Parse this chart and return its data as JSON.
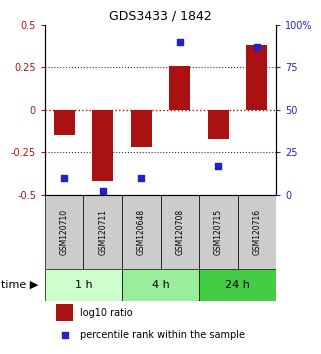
{
  "title": "GDS3433 / 1842",
  "samples": [
    "GSM120710",
    "GSM120711",
    "GSM120648",
    "GSM120708",
    "GSM120715",
    "GSM120716"
  ],
  "log10_ratio": [
    -0.15,
    -0.42,
    -0.22,
    0.26,
    -0.17,
    0.38
  ],
  "percentile_rank": [
    10,
    2,
    10,
    90,
    17,
    87
  ],
  "bar_color": "#aa1111",
  "dot_color": "#2222cc",
  "ylim_left": [
    -0.5,
    0.5
  ],
  "ylim_right": [
    0,
    100
  ],
  "yticks_left": [
    -0.5,
    -0.25,
    0,
    0.25,
    0.5
  ],
  "ytick_labels_left": [
    "-0.5",
    "-0.25",
    "0",
    "0.25",
    "0.5"
  ],
  "yticks_right": [
    0,
    25,
    50,
    75,
    100
  ],
  "ytick_labels_right": [
    "0",
    "25",
    "50",
    "75",
    "100%"
  ],
  "hline_zero_color": "#cc0000",
  "hline_color": "#333333",
  "groups": [
    {
      "label": "1 h",
      "samples": [
        0,
        1
      ],
      "color": "#ccffcc"
    },
    {
      "label": "4 h",
      "samples": [
        2,
        3
      ],
      "color": "#99ee99"
    },
    {
      "label": "24 h",
      "samples": [
        4,
        5
      ],
      "color": "#44cc44"
    }
  ],
  "time_label": "time",
  "legend_bar_label": "log10 ratio",
  "legend_dot_label": "percentile rank within the sample",
  "bg_color": "#ffffff",
  "bar_width": 0.55
}
